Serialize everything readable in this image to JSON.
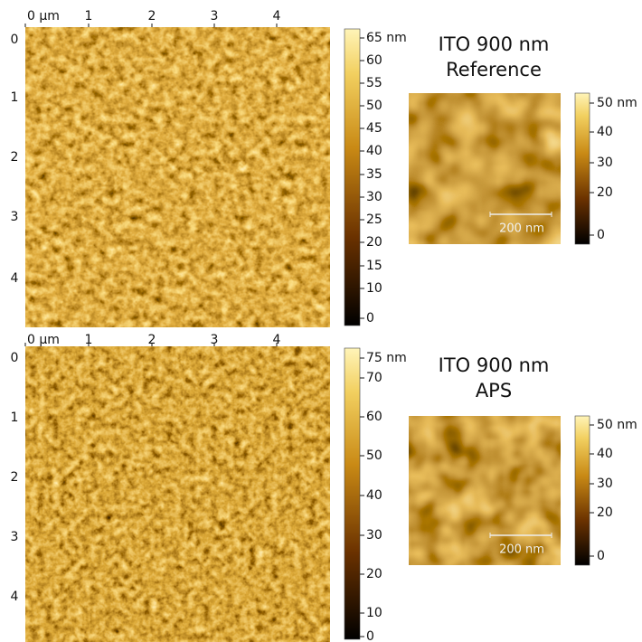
{
  "panels": [
    {
      "x_axis_labels": [
        "0 μm",
        "1",
        "2",
        "3",
        "4"
      ],
      "y_axis_labels": [
        "0",
        "1",
        "2",
        "3",
        "4"
      ],
      "colorbar_labels": [
        "65 nm",
        "60",
        "55",
        "50",
        "45",
        "40",
        "35",
        "30",
        "25",
        "20",
        "15",
        "10",
        "0"
      ],
      "inset": {
        "title_line1": "ITO 900 nm",
        "title_line2": "Reference",
        "scale_bar": "200 nm",
        "colorbar_labels": [
          "50 nm",
          "40",
          "30",
          "20",
          "0"
        ]
      }
    },
    {
      "x_axis_labels": [
        "0 μm",
        "1",
        "2",
        "3",
        "4"
      ],
      "y_axis_labels": [
        "0",
        "1",
        "2",
        "3",
        "4"
      ],
      "colorbar_labels": [
        "75 nm",
        "70",
        "60",
        "50",
        "40",
        "30",
        "20",
        "10",
        "0"
      ],
      "inset": {
        "title_line1": "ITO 900 nm",
        "title_line2": "APS",
        "scale_bar": "200 nm",
        "colorbar_labels": [
          "50 nm",
          "40",
          "30",
          "20",
          "0"
        ]
      }
    }
  ]
}
